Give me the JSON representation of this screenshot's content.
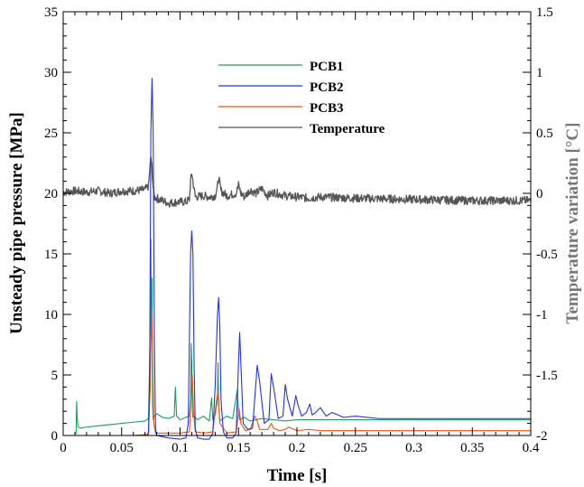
{
  "chart_data": {
    "type": "line",
    "x_axis": {
      "label": "Time [s]",
      "range": [
        0,
        0.4
      ],
      "ticks": [
        "0",
        "0.05",
        "0.1",
        "0.15",
        "0.2",
        "0.25",
        "0.3",
        "0.35",
        "0.4"
      ]
    },
    "y_axis_left": {
      "label": "Unsteady pipe pressure [MPa]",
      "range": [
        0,
        35
      ],
      "ticks": [
        "0",
        "5",
        "10",
        "15",
        "20",
        "25",
        "30",
        "35"
      ]
    },
    "y_axis_right": {
      "label": "Temperature variation [°C]",
      "range": [
        -2,
        1.5
      ],
      "ticks": [
        "-2",
        "-1.5",
        "-1",
        "-0.5",
        "0",
        "0.5",
        "1",
        "1.5"
      ]
    },
    "legend": {
      "position": "top-center"
    },
    "series": [
      {
        "name": "PCB1",
        "axis": "left",
        "color": "#17a05d",
        "x": [
          0.011,
          0.0115,
          0.012,
          0.0125,
          0.013,
          0.015,
          0.02,
          0.03,
          0.04,
          0.05,
          0.06,
          0.07,
          0.073,
          0.0745,
          0.075,
          0.0755,
          0.076,
          0.0765,
          0.077,
          0.078,
          0.08,
          0.085,
          0.09,
          0.095,
          0.096,
          0.097,
          0.1,
          0.105,
          0.108,
          0.109,
          0.1095,
          0.11,
          0.1105,
          0.111,
          0.112,
          0.115,
          0.12,
          0.125,
          0.127,
          0.128,
          0.13,
          0.132,
          0.1325,
          0.133,
          0.134,
          0.14,
          0.145,
          0.149,
          0.15,
          0.151,
          0.155,
          0.16,
          0.165,
          0.17,
          0.18,
          0.19,
          0.2,
          0.21,
          0.22,
          0.25,
          0.3,
          0.35,
          0.4
        ],
        "y": [
          0.1,
          2.8,
          1.4,
          0.9,
          0.7,
          0.6,
          0.7,
          0.8,
          0.9,
          1.0,
          1.1,
          1.2,
          1.4,
          9.0,
          16.2,
          8.0,
          13.0,
          2.5,
          1.3,
          1.6,
          1.8,
          1.5,
          1.4,
          1.6,
          4.0,
          1.6,
          1.3,
          1.5,
          1.6,
          3.0,
          7.6,
          6.0,
          2.0,
          1.5,
          1.6,
          1.3,
          1.6,
          1.2,
          3.1,
          1.3,
          1.7,
          3.0,
          6.0,
          2.5,
          1.2,
          1.6,
          1.4,
          3.8,
          2.0,
          1.3,
          1.5,
          1.2,
          1.3,
          1.4,
          1.3,
          1.2,
          1.3,
          1.3,
          1.3,
          1.3,
          1.3,
          1.3,
          1.3
        ]
      },
      {
        "name": "PCB2",
        "axis": "left",
        "color": "#2233dd",
        "x": [
          0.011,
          0.03,
          0.06,
          0.072,
          0.073,
          0.074,
          0.075,
          0.076,
          0.077,
          0.078,
          0.079,
          0.08,
          0.085,
          0.09,
          0.1,
          0.105,
          0.107,
          0.108,
          0.109,
          0.11,
          0.111,
          0.112,
          0.113,
          0.115,
          0.12,
          0.125,
          0.128,
          0.13,
          0.132,
          0.133,
          0.134,
          0.135,
          0.137,
          0.14,
          0.145,
          0.148,
          0.15,
          0.151,
          0.152,
          0.154,
          0.158,
          0.162,
          0.165,
          0.166,
          0.168,
          0.172,
          0.176,
          0.178,
          0.18,
          0.184,
          0.188,
          0.19,
          0.192,
          0.196,
          0.199,
          0.201,
          0.204,
          0.208,
          0.211,
          0.213,
          0.216,
          0.22,
          0.225,
          0.23,
          0.24,
          0.25,
          0.27,
          0.3,
          0.35,
          0.4
        ],
        "y": [
          0.0,
          0.0,
          0.0,
          0.0,
          0.3,
          5.0,
          25.0,
          29.5,
          25.0,
          8.0,
          0.5,
          0.0,
          -0.1,
          -0.2,
          -0.3,
          -0.2,
          1.0,
          8.0,
          15.0,
          16.9,
          15.0,
          6.0,
          0.5,
          -0.2,
          -0.3,
          -0.3,
          0.2,
          4.0,
          10.0,
          11.4,
          9.0,
          3.0,
          0.3,
          -0.2,
          -0.2,
          0.2,
          6.0,
          8.5,
          6.0,
          1.0,
          0.5,
          0.6,
          4.5,
          5.8,
          4.5,
          1.0,
          1.3,
          5.1,
          4.0,
          1.4,
          1.6,
          4.2,
          3.0,
          1.6,
          3.3,
          2.5,
          1.6,
          1.9,
          2.6,
          1.7,
          1.9,
          2.3,
          1.6,
          1.9,
          1.5,
          1.6,
          1.4,
          1.4,
          1.4,
          1.4
        ]
      },
      {
        "name": "PCB3",
        "axis": "left",
        "color": "#ee5511",
        "x": [
          0.011,
          0.03,
          0.06,
          0.073,
          0.0745,
          0.0755,
          0.0765,
          0.0775,
          0.079,
          0.085,
          0.09,
          0.1,
          0.108,
          0.1095,
          0.1105,
          0.1115,
          0.113,
          0.12,
          0.128,
          0.131,
          0.1325,
          0.134,
          0.14,
          0.148,
          0.1505,
          0.152,
          0.156,
          0.16,
          0.164,
          0.166,
          0.168,
          0.175,
          0.178,
          0.18,
          0.185,
          0.19,
          0.193,
          0.2,
          0.21,
          0.22,
          0.25,
          0.3,
          0.35,
          0.4
        ],
        "y": [
          0.0,
          0.0,
          0.0,
          0.1,
          4.0,
          10.4,
          7.0,
          1.0,
          0.2,
          0.2,
          0.2,
          0.2,
          0.3,
          3.5,
          5.0,
          2.0,
          0.3,
          0.2,
          0.3,
          2.8,
          3.7,
          1.0,
          0.2,
          0.3,
          2.2,
          1.0,
          0.4,
          0.5,
          1.6,
          1.2,
          0.5,
          0.5,
          1.0,
          0.6,
          0.4,
          0.5,
          0.7,
          0.4,
          0.5,
          0.4,
          0.4,
          0.4,
          0.4,
          0.4
        ]
      },
      {
        "name": "Temperature",
        "axis": "right",
        "color": "#555555",
        "x": [
          0.0,
          0.01,
          0.02,
          0.03,
          0.04,
          0.05,
          0.06,
          0.07,
          0.073,
          0.074,
          0.075,
          0.076,
          0.077,
          0.078,
          0.08,
          0.085,
          0.09,
          0.1,
          0.105,
          0.108,
          0.109,
          0.11,
          0.111,
          0.113,
          0.12,
          0.125,
          0.13,
          0.132,
          0.133,
          0.135,
          0.14,
          0.148,
          0.15,
          0.152,
          0.155,
          0.16,
          0.165,
          0.17,
          0.175,
          0.18,
          0.19,
          0.2,
          0.21,
          0.22,
          0.25,
          0.3,
          0.35,
          0.4
        ],
        "y": [
          0.01,
          0.02,
          0.01,
          0.02,
          0.0,
          0.02,
          0.02,
          0.03,
          0.06,
          0.18,
          0.3,
          0.2,
          0.05,
          -0.03,
          -0.04,
          -0.06,
          -0.08,
          -0.07,
          -0.07,
          -0.05,
          0.1,
          0.17,
          0.1,
          -0.03,
          -0.02,
          -0.03,
          -0.02,
          0.05,
          0.13,
          0.02,
          -0.02,
          0.0,
          0.07,
          0.0,
          -0.03,
          0.03,
          0.0,
          0.04,
          -0.02,
          0.01,
          -0.02,
          -0.03,
          -0.04,
          -0.03,
          -0.04,
          -0.05,
          -0.06,
          -0.06
        ]
      }
    ]
  }
}
